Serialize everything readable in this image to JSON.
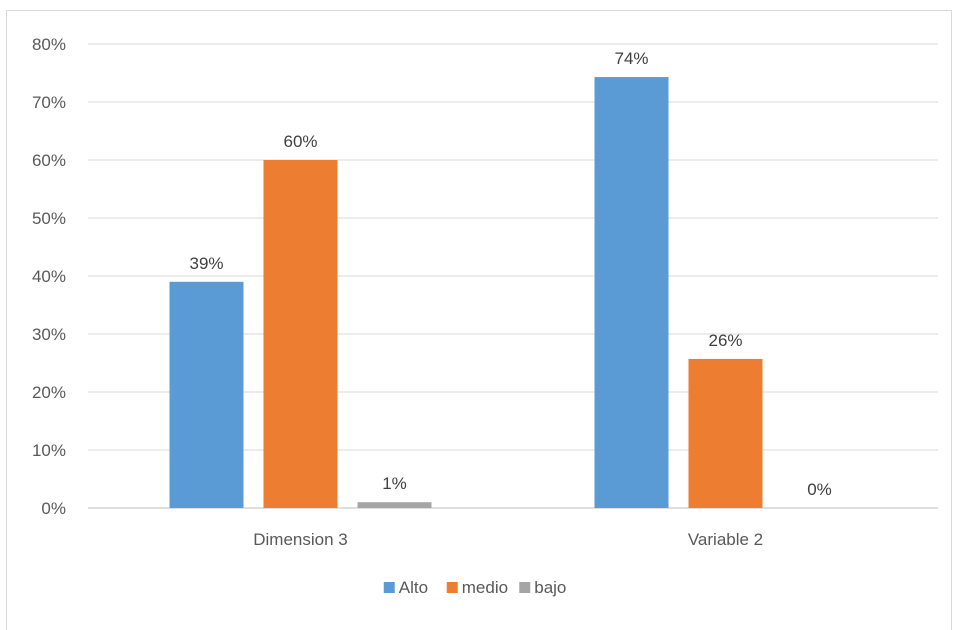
{
  "chart_data": {
    "type": "bar",
    "title": "",
    "xlabel": "",
    "ylabel": "",
    "categories": [
      "Dimension 3",
      "Variable 2"
    ],
    "series": [
      {
        "name": "Alto",
        "color": "#5B9BD5",
        "values": [
          0.39,
          0.743
        ],
        "labels": [
          "39%",
          "74%"
        ]
      },
      {
        "name": "medio",
        "color": "#ED7D31",
        "values": [
          0.6,
          0.257
        ],
        "labels": [
          "60%",
          "26%"
        ]
      },
      {
        "name": "bajo",
        "color": "#A5A5A5",
        "values": [
          0.01,
          0.0
        ],
        "labels": [
          "1%",
          "0%"
        ]
      }
    ],
    "ylim": [
      0,
      0.8
    ],
    "yticks": [
      0,
      0.1,
      0.2,
      0.3,
      0.4,
      0.5,
      0.6,
      0.7,
      0.8
    ],
    "ytick_labels": [
      "0%",
      "10%",
      "20%",
      "30%",
      "40%",
      "50%",
      "60%",
      "70%",
      "80%"
    ],
    "grid": true,
    "legend_position": "bottom",
    "gridline_color": "#d9d9d9",
    "axis_color": "#bfbfbf"
  }
}
